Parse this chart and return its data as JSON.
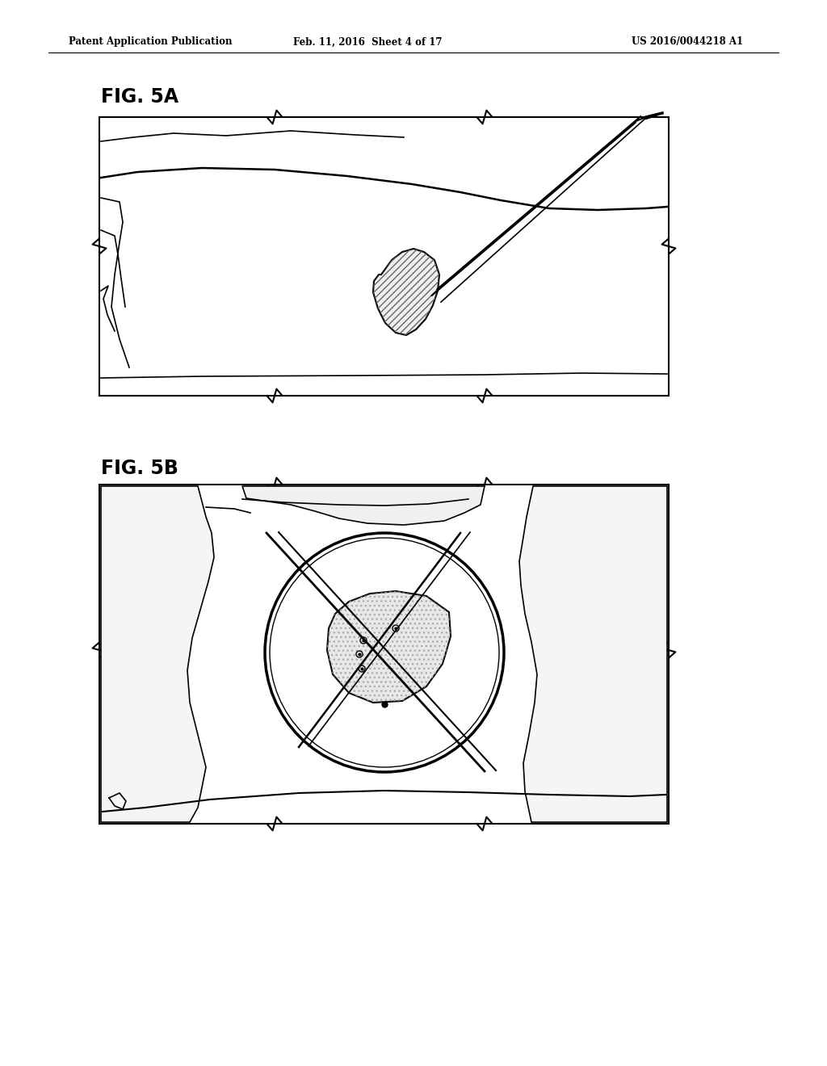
{
  "bg_color": "#ffffff",
  "header_left": "Patent Application Publication",
  "header_mid": "Feb. 11, 2016  Sheet 4 of 17",
  "header_right": "US 2016/0044218 A1",
  "fig5a_label": "FIG. 5A",
  "fig5b_label": "FIG. 5B"
}
